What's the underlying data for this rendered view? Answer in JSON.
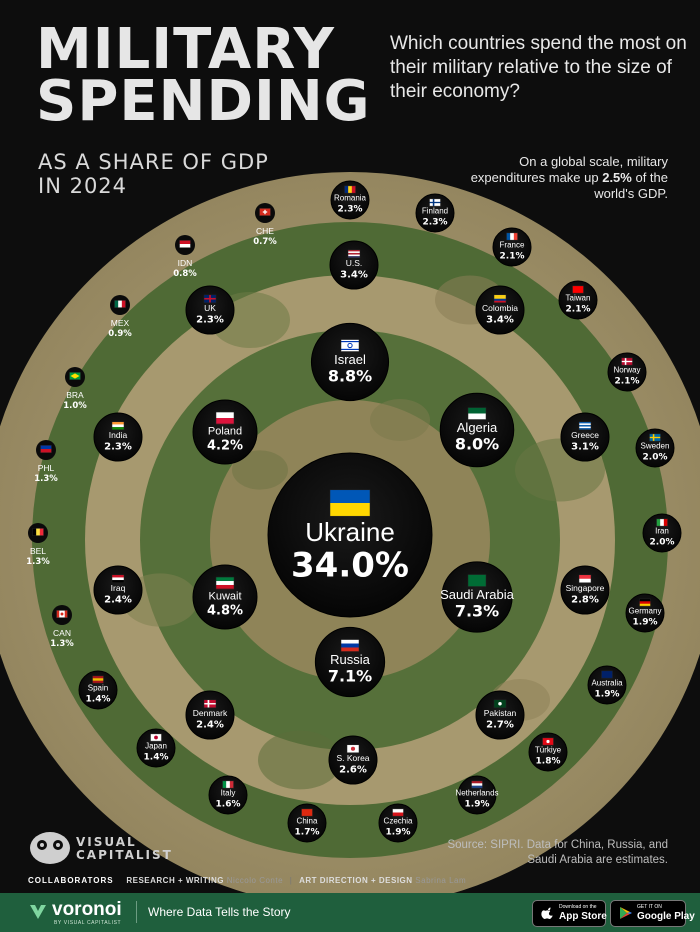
{
  "header": {
    "title_line1": "MILITARY",
    "title_line2": "SPENDING",
    "subtitle_line1": "AS A SHARE OF GDP",
    "subtitle_line2": "IN 2024",
    "question": "Which countries spend the most on their military relative to the size of their economy?",
    "note_pre": "On a global scale, military expenditures make up ",
    "note_value": "2.5%",
    "note_post": " of the world's GDP."
  },
  "source": "Source: SIPRI. Data for China, Russia, and Saudi Arabia are estimates.",
  "branding": {
    "logo_line1": "VISUAL",
    "logo_line2": "CAPITALIST",
    "collaborators_label": "COLLABORATORS",
    "research_role": "RESEARCH + WRITING",
    "research_name": "Niccolo Conte",
    "art_role": "ART DIRECTION + DESIGN",
    "art_name": "Sabrina Lam"
  },
  "footer": {
    "brand": "voronoi",
    "brand_sub": "BY VISUAL CAPITALIST",
    "tagline": "Where Data Tells the Story",
    "appstore_small": "Download on the",
    "appstore_big": "App Store",
    "googleplay_small": "GET IT ON",
    "googleplay_big": "Google Play"
  },
  "colors": {
    "background": "#0d0d0d",
    "camo_tan": "#a89a74",
    "camo_green": "#4f6a35",
    "bubble": "#0e0e0e",
    "footer_green": "#1f5f3d"
  },
  "chart_data": {
    "type": "bubble",
    "unit": "% of GDP",
    "center": {
      "name": "Ukraine",
      "value": 34.0,
      "label": "34.0%"
    },
    "ring1": [
      {
        "name": "Israel",
        "value": 8.8,
        "label": "8.8%"
      },
      {
        "name": "Algeria",
        "value": 8.0,
        "label": "8.0%"
      },
      {
        "name": "Saudi Arabia",
        "value": 7.3,
        "label": "7.3%"
      },
      {
        "name": "Russia",
        "value": 7.1,
        "label": "7.1%"
      },
      {
        "name": "Kuwait",
        "value": 4.8,
        "label": "4.8%"
      },
      {
        "name": "Poland",
        "value": 4.2,
        "label": "4.2%"
      }
    ],
    "ring2": [
      {
        "name": "U.S.",
        "value": 3.4,
        "label": "3.4%"
      },
      {
        "name": "Colombia",
        "value": 3.4,
        "label": "3.4%"
      },
      {
        "name": "Greece",
        "value": 3.1,
        "label": "3.1%"
      },
      {
        "name": "Singapore",
        "value": 2.8,
        "label": "2.8%"
      },
      {
        "name": "Pakistan",
        "value": 2.7,
        "label": "2.7%"
      },
      {
        "name": "S. Korea",
        "value": 2.6,
        "label": "2.6%"
      },
      {
        "name": "Denmark",
        "value": 2.4,
        "label": "2.4%"
      },
      {
        "name": "Iraq",
        "value": 2.4,
        "label": "2.4%"
      },
      {
        "name": "India",
        "value": 2.3,
        "label": "2.3%"
      },
      {
        "name": "UK",
        "value": 2.3,
        "label": "2.3%"
      }
    ],
    "ring3": [
      {
        "name": "Romania",
        "value": 2.3,
        "label": "2.3%"
      },
      {
        "name": "Finland",
        "value": 2.3,
        "label": "2.3%"
      },
      {
        "name": "France",
        "value": 2.1,
        "label": "2.1%"
      },
      {
        "name": "Taiwan",
        "value": 2.1,
        "label": "2.1%"
      },
      {
        "name": "Norway",
        "value": 2.1,
        "label": "2.1%"
      },
      {
        "name": "Sweden",
        "value": 2.0,
        "label": "2.0%"
      },
      {
        "name": "Iran",
        "value": 2.0,
        "label": "2.0%"
      },
      {
        "name": "Germany",
        "value": 1.9,
        "label": "1.9%"
      },
      {
        "name": "Australia",
        "value": 1.9,
        "label": "1.9%"
      },
      {
        "name": "Türkiye",
        "value": 1.8,
        "label": "1.8%"
      },
      {
        "name": "Netherlands",
        "value": 1.9,
        "label": "1.9%"
      },
      {
        "name": "Czechia",
        "value": 1.9,
        "label": "1.9%"
      },
      {
        "name": "China",
        "value": 1.7,
        "label": "1.7%"
      },
      {
        "name": "Italy",
        "value": 1.6,
        "label": "1.6%"
      },
      {
        "name": "Japan",
        "value": 1.4,
        "label": "1.4%"
      },
      {
        "name": "Spain",
        "value": 1.4,
        "label": "1.4%"
      },
      {
        "name": "CAN",
        "value": 1.3,
        "label": "1.3%"
      },
      {
        "name": "BEL",
        "value": 1.3,
        "label": "1.3%"
      },
      {
        "name": "PHL",
        "value": 1.3,
        "label": "1.3%"
      },
      {
        "name": "BRA",
        "value": 1.0,
        "label": "1.0%"
      },
      {
        "name": "MEX",
        "value": 0.9,
        "label": "0.9%"
      },
      {
        "name": "IDN",
        "value": 0.8,
        "label": "0.8%"
      },
      {
        "name": "CHE",
        "value": 0.7,
        "label": "0.7%"
      }
    ]
  }
}
